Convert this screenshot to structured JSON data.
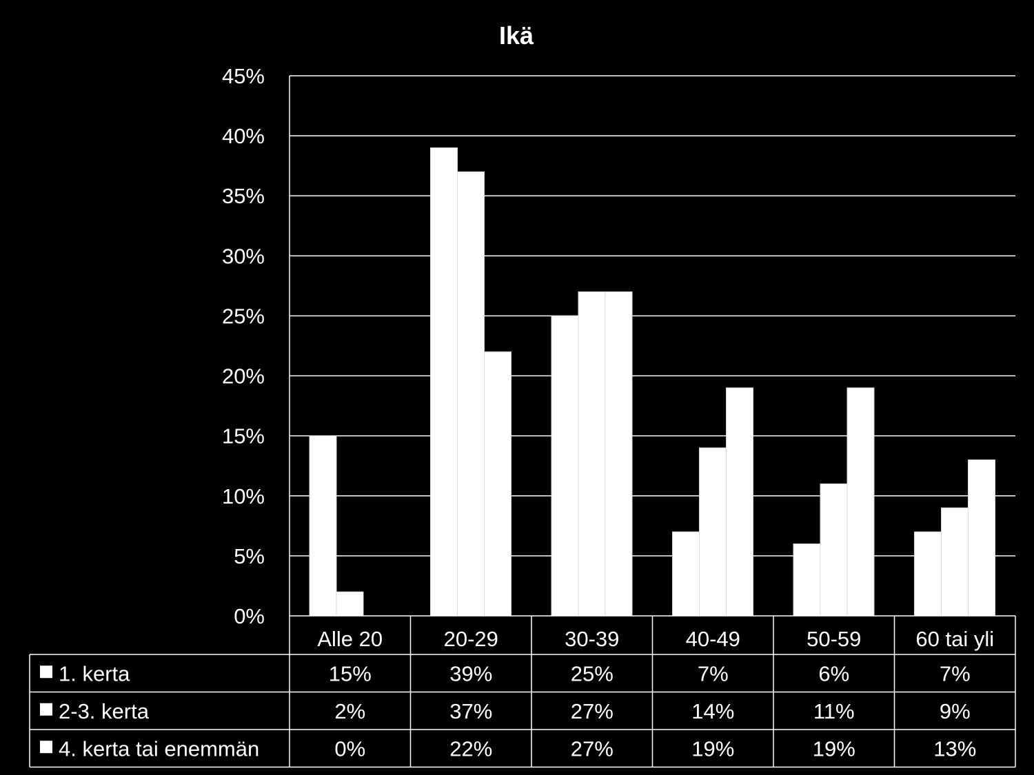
{
  "chart_data": {
    "type": "bar",
    "title": "Ikä",
    "categories": [
      "Alle 20",
      "20-29",
      "30-39",
      "40-49",
      "50-59",
      "60 tai yli"
    ],
    "series": [
      {
        "name": "1. kerta",
        "values": [
          15,
          39,
          25,
          7,
          6,
          7
        ]
      },
      {
        "name": "2-3. kerta",
        "values": [
          2,
          37,
          27,
          14,
          11,
          9
        ]
      },
      {
        "name": "4. kerta tai enemmän",
        "values": [
          0,
          22,
          27,
          19,
          19,
          13
        ]
      }
    ],
    "ylim": [
      0,
      45
    ],
    "yticks": [
      "0%",
      "5%",
      "10%",
      "15%",
      "20%",
      "25%",
      "30%",
      "35%",
      "40%",
      "45%"
    ],
    "table_labels": [
      [
        "15%",
        "39%",
        "25%",
        "7%",
        "6%",
        "7%"
      ],
      [
        "2%",
        "37%",
        "27%",
        "14%",
        "11%",
        "9%"
      ],
      [
        "0%",
        "22%",
        "27%",
        "19%",
        "19%",
        "13%"
      ]
    ],
    "grid": true,
    "legend": "data-table",
    "colors": {
      "background": "#000000",
      "bars": "#ffffff",
      "bar_edge": "#d9d9d9",
      "grid": "#ffffff",
      "text": "#ffffff"
    }
  }
}
